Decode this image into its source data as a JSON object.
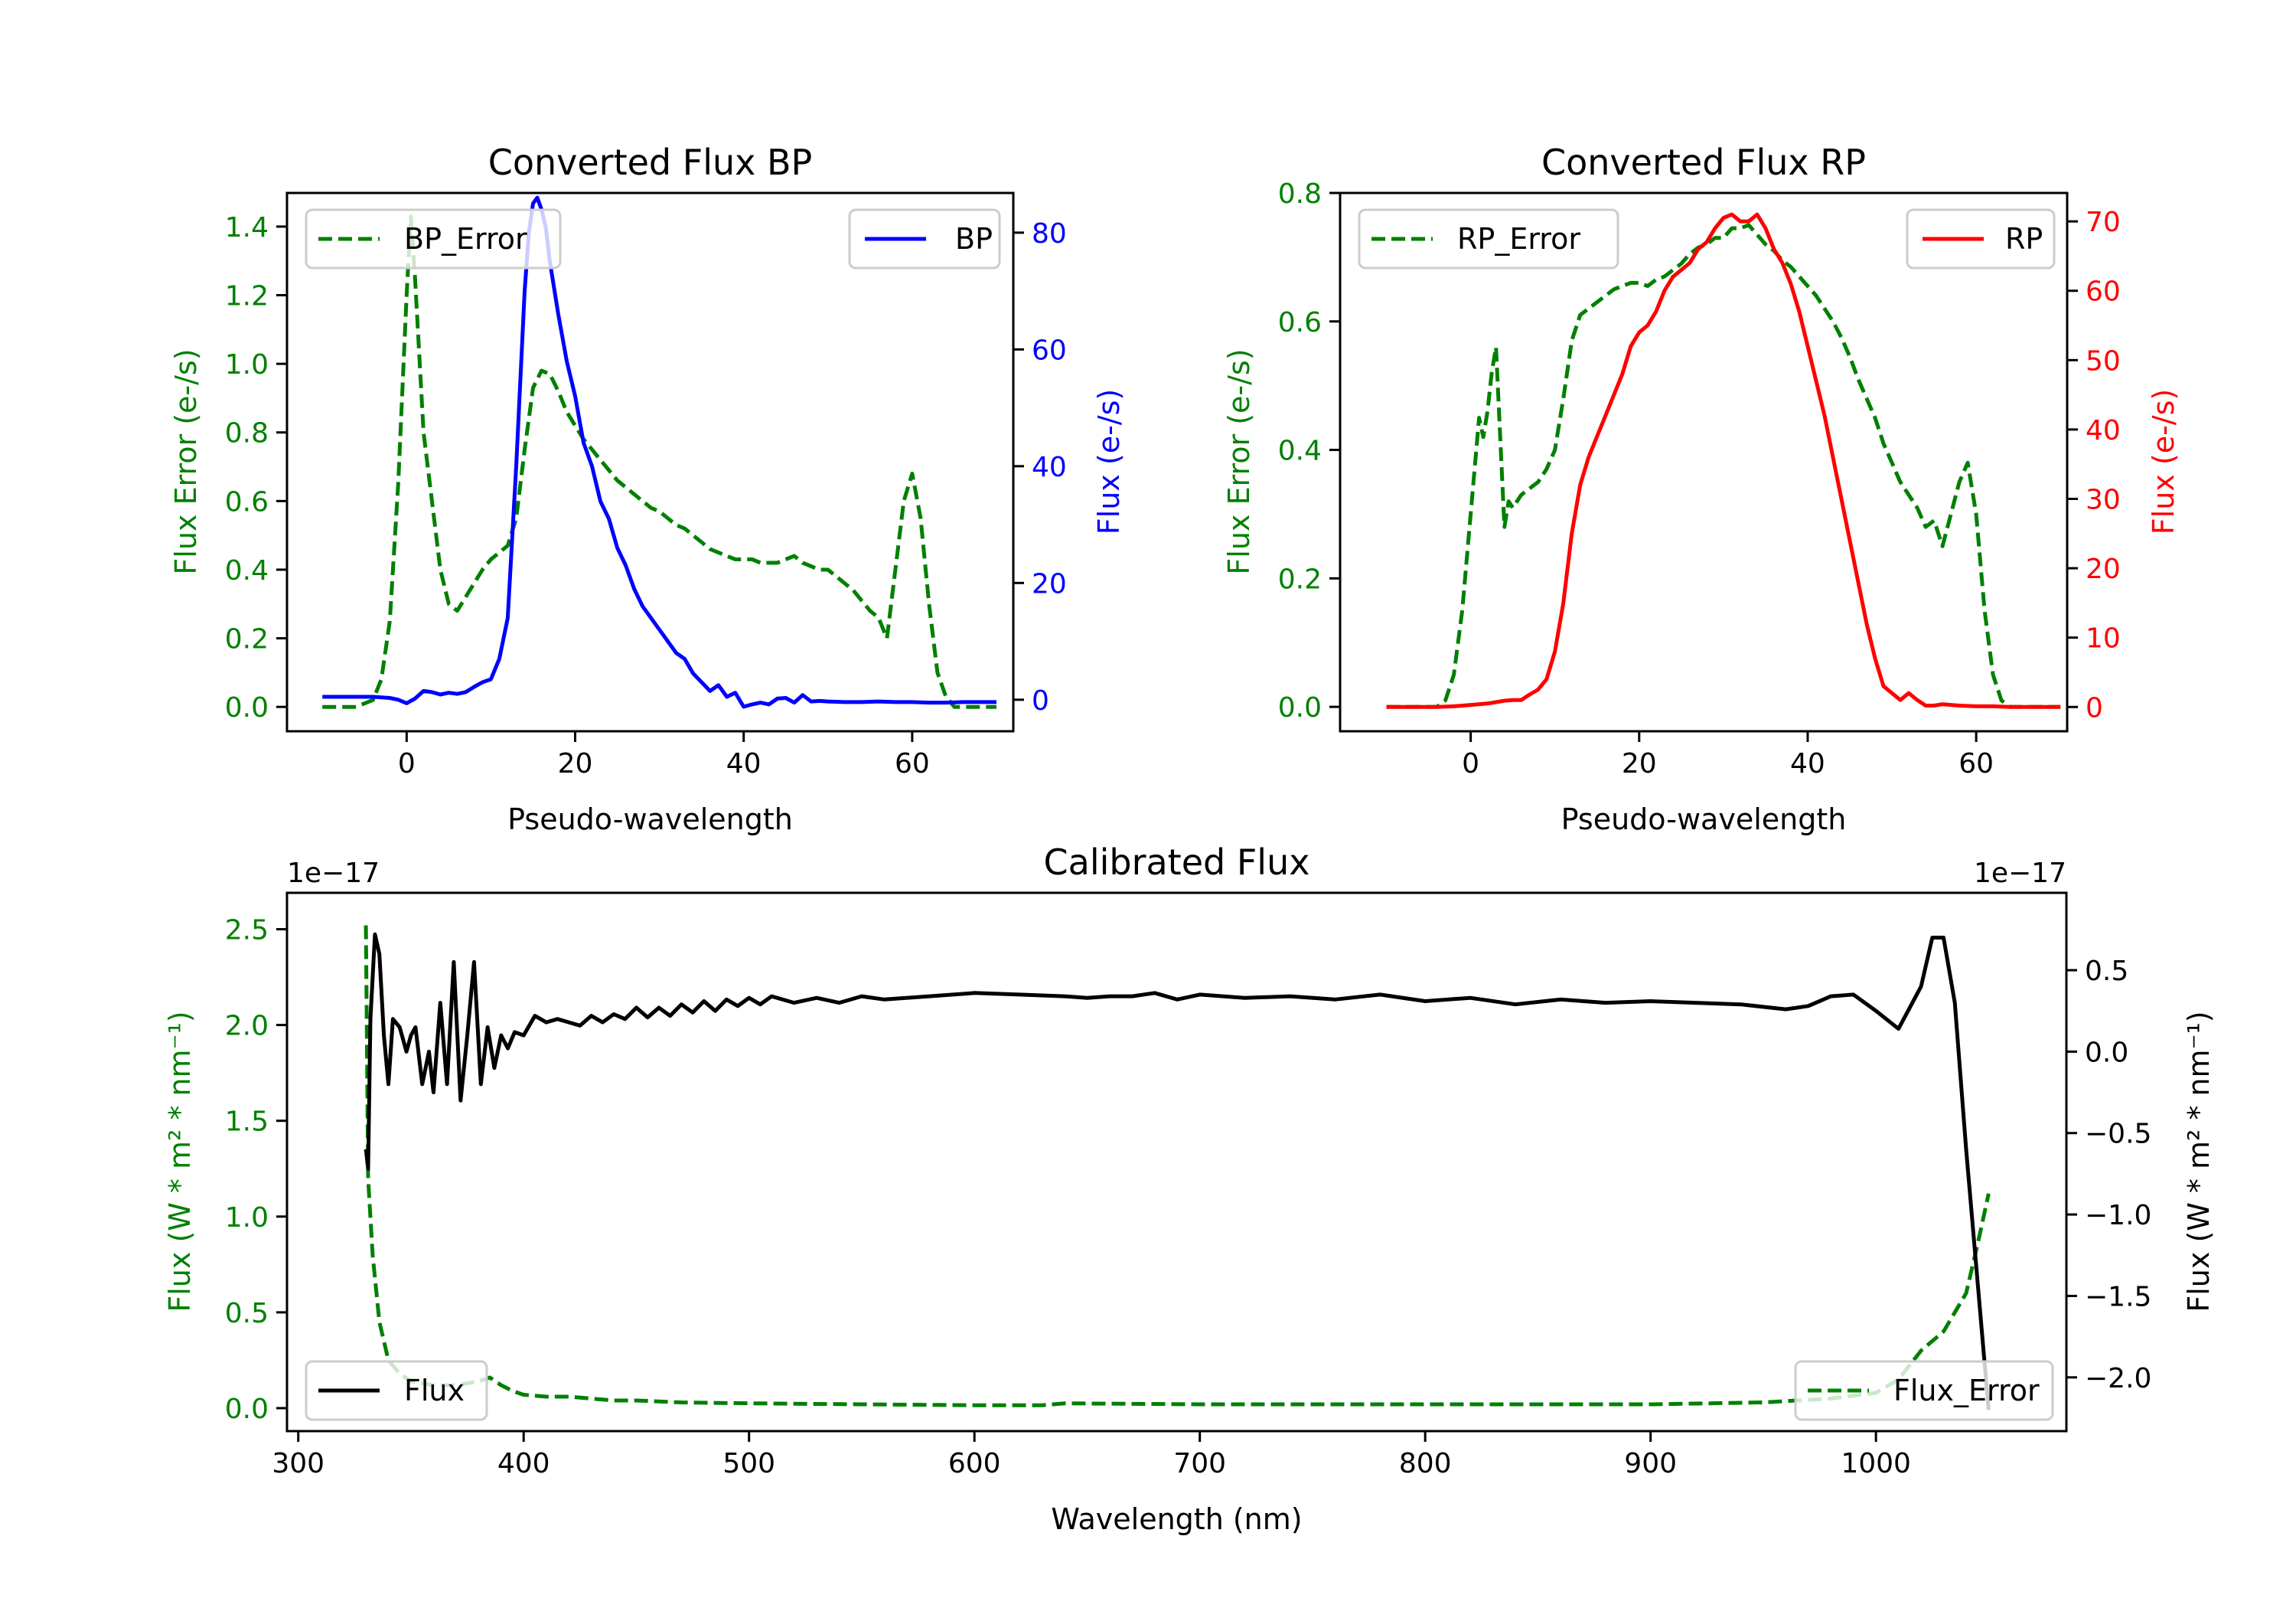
{
  "figure": {
    "background": "#ffffff"
  },
  "colors": {
    "error": "#008000",
    "bp": "#0000ff",
    "rp": "#ff0000",
    "flux": "#000000",
    "axis": "#000000",
    "legend_border": "#cccccc"
  },
  "chart_data": [
    {
      "id": "bp",
      "type": "line",
      "title": "Converted Flux BP",
      "xlabel": "Pseudo-wavelength",
      "ylabel_left": "Flux Error (e-/s)",
      "ylabel_right": "Flux (e-/s)",
      "xlim": [
        -14.2,
        72.0
      ],
      "ylim_left": [
        -0.071,
        1.498
      ],
      "ylim_right": [
        -5.4,
        86.8
      ],
      "xticks": [
        0,
        20,
        40,
        60
      ],
      "xtick_labels": [
        "0",
        "20",
        "40",
        "60"
      ],
      "yticks_left": [
        0.0,
        0.2,
        0.4,
        0.6,
        0.8,
        1.0,
        1.2,
        1.4
      ],
      "ytick_labels_left": [
        "0.0",
        "0.2",
        "0.4",
        "0.6",
        "0.8",
        "1.0",
        "1.2",
        "1.4"
      ],
      "yticks_right": [
        0,
        20,
        40,
        60,
        80
      ],
      "ytick_labels_right": [
        "0",
        "20",
        "40",
        "60",
        "80"
      ],
      "left_color_key": "error",
      "right_color_key": "bp",
      "legend_left": {
        "label": "BP_Error",
        "placement": "upper-left"
      },
      "legend_right": {
        "label": "BP",
        "placement": "upper-right"
      },
      "series_left": {
        "name": "BP_Error",
        "style": "dashed",
        "x": [
          -10,
          -8,
          -6,
          -4,
          -3,
          -2,
          -1,
          0,
          0.5,
          1,
          2,
          3,
          4,
          5,
          6,
          7,
          8,
          9,
          10,
          11,
          12,
          13,
          14,
          15,
          16,
          17,
          18,
          19,
          20,
          21,
          22,
          23,
          24,
          25,
          26,
          27,
          28,
          29,
          30,
          31,
          32,
          33,
          34,
          35,
          36,
          37,
          38,
          39,
          40,
          41,
          42,
          43,
          44,
          45,
          46,
          47,
          48,
          49,
          50,
          51,
          52,
          53,
          54,
          55,
          56,
          57,
          58,
          59,
          60,
          61,
          62,
          63,
          64,
          65,
          66,
          68,
          70
        ],
        "y": [
          0.0,
          0.0,
          0.0,
          0.02,
          0.08,
          0.25,
          0.65,
          1.2,
          1.43,
          1.25,
          0.8,
          0.6,
          0.4,
          0.3,
          0.28,
          0.32,
          0.36,
          0.4,
          0.43,
          0.45,
          0.47,
          0.55,
          0.75,
          0.93,
          0.98,
          0.97,
          0.92,
          0.86,
          0.82,
          0.78,
          0.75,
          0.72,
          0.69,
          0.66,
          0.64,
          0.62,
          0.6,
          0.58,
          0.57,
          0.55,
          0.53,
          0.52,
          0.5,
          0.48,
          0.46,
          0.45,
          0.44,
          0.43,
          0.43,
          0.43,
          0.42,
          0.42,
          0.42,
          0.43,
          0.44,
          0.42,
          0.41,
          0.4,
          0.4,
          0.38,
          0.36,
          0.34,
          0.31,
          0.28,
          0.26,
          0.2,
          0.4,
          0.6,
          0.68,
          0.55,
          0.3,
          0.1,
          0.03,
          0.0,
          0.0,
          0.0,
          0.0
        ]
      },
      "series_right": {
        "name": "BP",
        "style": "solid",
        "x": [
          -10,
          -6,
          -4,
          -2,
          -1,
          0,
          1,
          2,
          3,
          4,
          5,
          6,
          7,
          8,
          9,
          10,
          11,
          12,
          13,
          14,
          14.5,
          15,
          15.5,
          16,
          16.5,
          17,
          18,
          19,
          20,
          21,
          22,
          23,
          24,
          25,
          26,
          27,
          28,
          29,
          30,
          31,
          32,
          33,
          34,
          35,
          36,
          37,
          38,
          39,
          40,
          41,
          42,
          43,
          44,
          45,
          46,
          47,
          48,
          49,
          50,
          52,
          54,
          56,
          58,
          60,
          62,
          64,
          66,
          70
        ],
        "y": [
          0.5,
          0.5,
          0.5,
          0.3,
          0,
          -0.6,
          0.2,
          1.5,
          1.3,
          0.9,
          1.2,
          1.0,
          1.3,
          2.2,
          3.0,
          3.5,
          7,
          14,
          40,
          70,
          80,
          85,
          86,
          84,
          81,
          75,
          66,
          58,
          52,
          44,
          40,
          34,
          31,
          26,
          23,
          19,
          16,
          14,
          12,
          10,
          8,
          7,
          4.5,
          3,
          1.5,
          2.5,
          0.5,
          1.2,
          -1.2,
          -0.8,
          -0.5,
          -0.8,
          0.2,
          0.3,
          -0.5,
          0.8,
          -0.3,
          -0.2,
          -0.3,
          -0.4,
          -0.4,
          -0.3,
          -0.4,
          -0.4,
          -0.5,
          -0.5,
          -0.4,
          -0.4
        ]
      }
    },
    {
      "id": "rp",
      "type": "line",
      "title": "Converted Flux RP",
      "xlabel": "Pseudo-wavelength",
      "ylabel_left": "Flux Error (e-/s)",
      "ylabel_right": "Flux (e-/s)",
      "xlim": [
        -15.5,
        70.8
      ],
      "ylim_left": [
        -0.038,
        0.8
      ],
      "ylim_right": [
        -3.5,
        74.1
      ],
      "xticks": [
        0,
        20,
        40,
        60
      ],
      "xtick_labels": [
        "0",
        "20",
        "40",
        "60"
      ],
      "yticks_left": [
        0.0,
        0.2,
        0.4,
        0.6,
        0.8
      ],
      "ytick_labels_left": [
        "0.0",
        "0.2",
        "0.4",
        "0.6",
        "0.8"
      ],
      "yticks_right": [
        0,
        10,
        20,
        30,
        40,
        50,
        60,
        70
      ],
      "ytick_labels_right": [
        "0",
        "10",
        "20",
        "30",
        "40",
        "50",
        "60",
        "70"
      ],
      "left_color_key": "error",
      "right_color_key": "rp",
      "legend_left": {
        "label": "RP_Error",
        "placement": "upper-left"
      },
      "legend_right": {
        "label": "RP",
        "placement": "upper-right"
      },
      "series_left": {
        "name": "RP_Error",
        "style": "dashed",
        "x": [
          -10,
          -6,
          -4,
          -3,
          -2,
          -1,
          0,
          1,
          1.5,
          2,
          2.5,
          3,
          4,
          4.5,
          5,
          6,
          7,
          8,
          9,
          10,
          11,
          12,
          13,
          14,
          15,
          16,
          17,
          18,
          19,
          20,
          21,
          22,
          23,
          24,
          25,
          26,
          27,
          28,
          29,
          30,
          31,
          32,
          33,
          34,
          35,
          36,
          37,
          38,
          39,
          40,
          41,
          42,
          43,
          44,
          45,
          46,
          47,
          48,
          49,
          50,
          51,
          52,
          53,
          54,
          55,
          56,
          57,
          58,
          59,
          60,
          61,
          62,
          63,
          64,
          66,
          70
        ],
        "y": [
          0.0,
          0.0,
          0.0,
          0.01,
          0.05,
          0.15,
          0.3,
          0.45,
          0.42,
          0.46,
          0.52,
          0.56,
          0.28,
          0.32,
          0.31,
          0.33,
          0.34,
          0.35,
          0.37,
          0.4,
          0.48,
          0.57,
          0.61,
          0.62,
          0.63,
          0.64,
          0.65,
          0.655,
          0.66,
          0.66,
          0.655,
          0.665,
          0.67,
          0.68,
          0.69,
          0.705,
          0.715,
          0.72,
          0.73,
          0.73,
          0.745,
          0.745,
          0.75,
          0.735,
          0.72,
          0.71,
          0.695,
          0.685,
          0.67,
          0.655,
          0.64,
          0.62,
          0.6,
          0.575,
          0.545,
          0.51,
          0.48,
          0.45,
          0.41,
          0.38,
          0.35,
          0.33,
          0.31,
          0.28,
          0.29,
          0.25,
          0.3,
          0.35,
          0.38,
          0.3,
          0.15,
          0.05,
          0.01,
          0.0,
          0.0,
          0.0
        ]
      },
      "series_right": {
        "name": "RP",
        "style": "solid",
        "x": [
          -10,
          -4,
          -2,
          0,
          2,
          3,
          4,
          5,
          6,
          7,
          8,
          9,
          10,
          11,
          12,
          13,
          14,
          15,
          16,
          17,
          18,
          19,
          20,
          21,
          22,
          23,
          24,
          25,
          26,
          27,
          28,
          29,
          30,
          31,
          32,
          33,
          34,
          35,
          36,
          37,
          38,
          39,
          40,
          41,
          42,
          43,
          44,
          45,
          46,
          47,
          48,
          49,
          50,
          51,
          52,
          53,
          54,
          55,
          56,
          58,
          60,
          62,
          64,
          66,
          70
        ],
        "y": [
          0,
          0,
          0.1,
          0.3,
          0.5,
          0.7,
          0.9,
          1,
          1.0,
          1.8,
          2.5,
          4.0,
          8,
          15,
          25,
          32,
          36,
          39,
          42,
          45,
          48,
          52,
          54,
          55,
          57,
          60,
          62,
          63,
          64,
          66,
          67,
          69,
          70.5,
          71,
          70,
          70,
          71,
          69,
          66,
          64,
          61,
          57,
          52,
          47,
          42,
          36,
          30,
          24,
          18,
          12,
          7,
          3,
          2,
          1,
          2,
          1,
          0.2,
          0.2,
          0.4,
          0.2,
          0.1,
          0.1,
          0,
          0,
          0
        ]
      }
    },
    {
      "id": "calibrated",
      "type": "line",
      "title": "Calibrated Flux",
      "xlabel": "Wavelength (nm)",
      "ylabel_left": "Flux (W * m² * nm⁻¹)",
      "ylabel_right": "Flux (W * m² * nm⁻¹)",
      "offset_left": "1e−17",
      "offset_right": "1e−17",
      "xlim": [
        295,
        1084.5
      ],
      "ylim_left": [
        -0.12,
        2.69
      ],
      "ylim_right": [
        -2.33,
        0.975
      ],
      "xticks": [
        300,
        400,
        500,
        600,
        700,
        800,
        900,
        1000
      ],
      "xtick_labels": [
        "300",
        "400",
        "500",
        "600",
        "700",
        "800",
        "900",
        "1000"
      ],
      "yticks_left": [
        0.0,
        0.5,
        1.0,
        1.5,
        2.0,
        2.5
      ],
      "ytick_labels_left": [
        "0.0",
        "0.5",
        "1.0",
        "1.5",
        "2.0",
        "2.5"
      ],
      "yticks_right": [
        -2.0,
        -1.5,
        -1.0,
        -0.5,
        0.0,
        0.5
      ],
      "ytick_labels_right": [
        "−2.0",
        "−1.5",
        "−1.0",
        "−0.5",
        "0.0",
        "0.5"
      ],
      "left_color_key": "error",
      "right_color_key": "flux",
      "left_label_color_key": "error",
      "right_label_color_key": "flux",
      "legend_left": {
        "label": "Flux",
        "placement": "lower-left"
      },
      "legend_right": {
        "label": "Flux_Error",
        "placement": "lower-right"
      },
      "series_left": {
        "name": "Flux_Error",
        "style": "dashed",
        "x": [
          330,
          331,
          333,
          336,
          340,
          345,
          350,
          360,
          370,
          380,
          385,
          390,
          395,
          400,
          410,
          420,
          430,
          440,
          450,
          470,
          500,
          550,
          600,
          630,
          640,
          700,
          800,
          900,
          950,
          980,
          1000,
          1010,
          1020,
          1030,
          1040,
          1045,
          1050
        ],
        "y": [
          2.52,
          1.2,
          0.8,
          0.45,
          0.25,
          0.18,
          0.14,
          0.12,
          0.12,
          0.14,
          0.16,
          0.12,
          0.09,
          0.07,
          0.06,
          0.06,
          0.05,
          0.04,
          0.04,
          0.03,
          0.025,
          0.02,
          0.015,
          0.015,
          0.025,
          0.02,
          0.02,
          0.02,
          0.03,
          0.05,
          0.08,
          0.15,
          0.3,
          0.4,
          0.6,
          0.85,
          1.12
        ]
      },
      "series_right": {
        "name": "Flux",
        "style": "solid",
        "x": [
          330,
          331,
          332,
          334,
          336,
          338,
          340,
          342,
          345,
          348,
          350,
          352,
          355,
          358,
          360,
          363,
          366,
          369,
          372,
          375,
          378,
          381,
          384,
          387,
          390,
          393,
          396,
          400,
          405,
          410,
          415,
          420,
          425,
          430,
          435,
          440,
          445,
          450,
          455,
          460,
          465,
          470,
          475,
          480,
          485,
          490,
          495,
          500,
          505,
          510,
          520,
          530,
          540,
          550,
          560,
          580,
          600,
          620,
          640,
          650,
          660,
          670,
          680,
          690,
          700,
          720,
          740,
          760,
          780,
          800,
          820,
          840,
          860,
          880,
          900,
          920,
          940,
          960,
          970,
          980,
          990,
          1000,
          1010,
          1020,
          1025,
          1030,
          1035,
          1040,
          1050
        ],
        "y": [
          -0.6,
          -0.72,
          0.2,
          0.72,
          0.6,
          0.1,
          -0.2,
          0.2,
          0.15,
          0.0,
          0.1,
          0.15,
          -0.2,
          0.0,
          -0.25,
          0.3,
          -0.2,
          0.55,
          -0.3,
          0.1,
          0.55,
          -0.2,
          0.15,
          -0.1,
          0.1,
          0.02,
          0.12,
          0.1,
          0.22,
          0.18,
          0.2,
          0.18,
          0.16,
          0.22,
          0.18,
          0.23,
          0.2,
          0.27,
          0.21,
          0.27,
          0.22,
          0.29,
          0.24,
          0.31,
          0.25,
          0.32,
          0.28,
          0.33,
          0.29,
          0.34,
          0.3,
          0.33,
          0.3,
          0.34,
          0.32,
          0.34,
          0.36,
          0.35,
          0.34,
          0.33,
          0.34,
          0.34,
          0.36,
          0.32,
          0.35,
          0.33,
          0.34,
          0.32,
          0.35,
          0.31,
          0.33,
          0.29,
          0.32,
          0.3,
          0.31,
          0.3,
          0.29,
          0.26,
          0.28,
          0.34,
          0.35,
          0.25,
          0.14,
          0.4,
          0.7,
          0.7,
          0.3,
          -0.6,
          -2.2
        ]
      }
    }
  ]
}
